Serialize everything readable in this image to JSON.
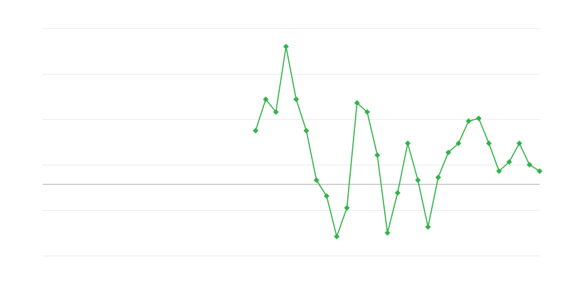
{
  "chart_data": {
    "type": "line",
    "title": "",
    "xlabel": "",
    "ylabel": "",
    "x_count": 50,
    "x": [
      21,
      22,
      23,
      24,
      25,
      26,
      27,
      28,
      29,
      30,
      31,
      32,
      33,
      34,
      35,
      36,
      37,
      38,
      39,
      40,
      41,
      42,
      43,
      44,
      45,
      46,
      47,
      48,
      49
    ],
    "series": [
      {
        "values": [
          1.17,
          1.86,
          1.58,
          3.02,
          1.86,
          1.17,
          0.08,
          -0.27,
          -1.16,
          -0.53,
          1.78,
          1.58,
          0.63,
          -1.08,
          -0.2,
          0.89,
          0.08,
          -0.95,
          0.14,
          0.69,
          0.89,
          1.38,
          1.44,
          0.89,
          0.28,
          0.48,
          0.89,
          0.42,
          0.28
        ],
        "color": "#34b24a",
        "marker": "diamond"
      }
    ],
    "ylim": [
      -1.58,
      3.42
    ],
    "gridlines": [
      3.42,
      2.42,
      1.42,
      0.42,
      -0.58,
      -1.58
    ],
    "baseline": 0,
    "grid": true,
    "legend": "none",
    "colors": {
      "grid": "#ebebeb",
      "baseline": "#b0b0b0"
    }
  }
}
